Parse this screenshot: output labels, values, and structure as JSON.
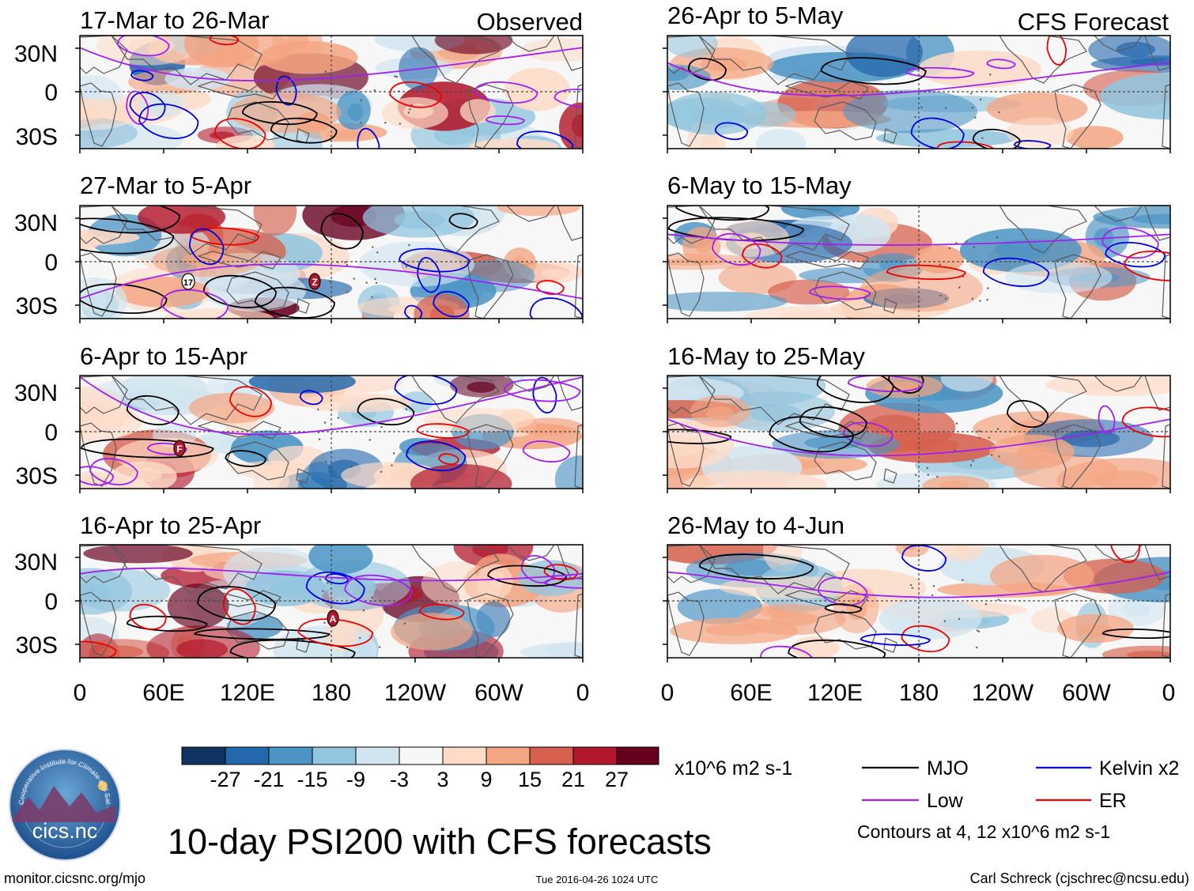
{
  "title": "10-day PSI200 with CFS forecasts",
  "left_column_label": "Observed",
  "right_column_label": "CFS Forecast",
  "panels": {
    "observed": [
      "17-Mar to 26-Mar",
      "27-Mar to 5-Apr",
      "6-Apr to 15-Apr",
      "16-Apr to 25-Apr"
    ],
    "forecast": [
      "26-Apr to 5-May",
      "6-May to 15-May",
      "16-May to 25-May",
      "26-May to 4-Jun"
    ]
  },
  "lat_labels": [
    "30N",
    "0",
    "30S"
  ],
  "lon_labels": [
    "0",
    "60E",
    "120E",
    "180",
    "120W",
    "60W",
    "0"
  ],
  "storm_markers": {
    "panel2": [
      "17",
      "Z"
    ],
    "panel3": [
      "F"
    ],
    "panel4": [
      "A"
    ]
  },
  "colorbar": {
    "tick_labels": [
      "-27",
      "-21",
      "-15",
      "-9",
      "-3",
      "3",
      "9",
      "15",
      "21",
      "27"
    ],
    "colors": [
      "#0f3360",
      "#2367ac",
      "#4b94c4",
      "#92c5de",
      "#d1e5f0",
      "#f7f7f7",
      "#fddbc7",
      "#f4a582",
      "#d6604d",
      "#b2182b",
      "#67001f"
    ],
    "units": "x10^6 m2 s-1"
  },
  "legend": {
    "items": [
      {
        "label": "MJO",
        "color": "#000000"
      },
      {
        "label": "Kelvin x2",
        "color": "#0000e0"
      },
      {
        "label": "Low",
        "color": "#a020f0"
      },
      {
        "label": "ER",
        "color": "#ee0000"
      }
    ],
    "contours_note": "Contours at 4, 12 x10^6 m2 s-1"
  },
  "logo": {
    "text": "cics.nc",
    "ring_text": "Cooperative Institute for Climate and Satellites"
  },
  "footer": {
    "url": "monitor.cicsnc.org/mjo",
    "timestamp": "Tue 2016-04-26 1024 UTC",
    "author": "Carl Schreck (cjschrec@ncsu.edu)"
  }
}
